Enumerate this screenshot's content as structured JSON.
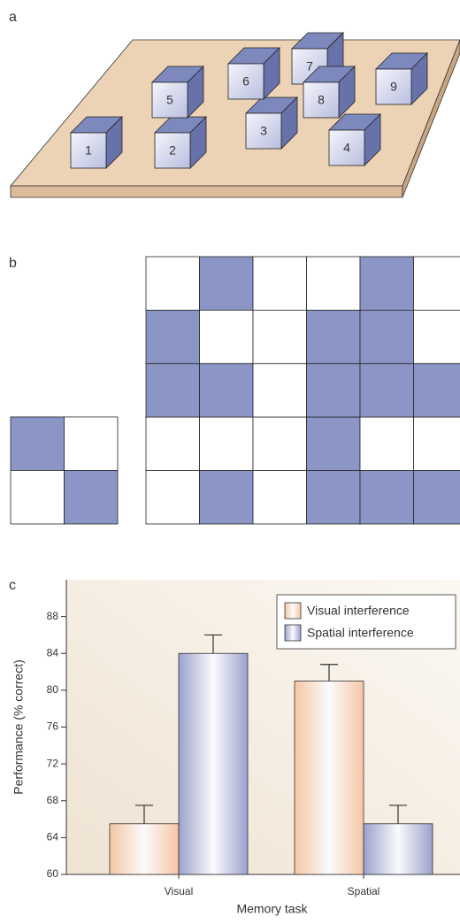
{
  "panel_a": {
    "label": "a",
    "cubes": [
      "1",
      "2",
      "3",
      "4",
      "5",
      "6",
      "7",
      "8",
      "9"
    ]
  },
  "panel_b": {
    "label": "b"
  },
  "panel_c": {
    "label": "c"
  },
  "chart_data": {
    "type": "bar",
    "x_label": "Memory task",
    "y_label": "Performance (% correct)",
    "categories": [
      "Visual",
      "Spatial"
    ],
    "series": [
      {
        "name": "Visual interference",
        "color": "#f5c6a4",
        "values": [
          65.5,
          81
        ],
        "errors": [
          2,
          1.8
        ]
      },
      {
        "name": "Spatial interference",
        "color": "#9ba1cd",
        "values": [
          84,
          65.5
        ],
        "errors": [
          2,
          2
        ]
      }
    ],
    "ylim": [
      60,
      92
    ],
    "yticks": [
      60,
      64,
      68,
      72,
      76,
      80,
      84,
      88
    ],
    "legend": "upper right",
    "grid": false
  }
}
